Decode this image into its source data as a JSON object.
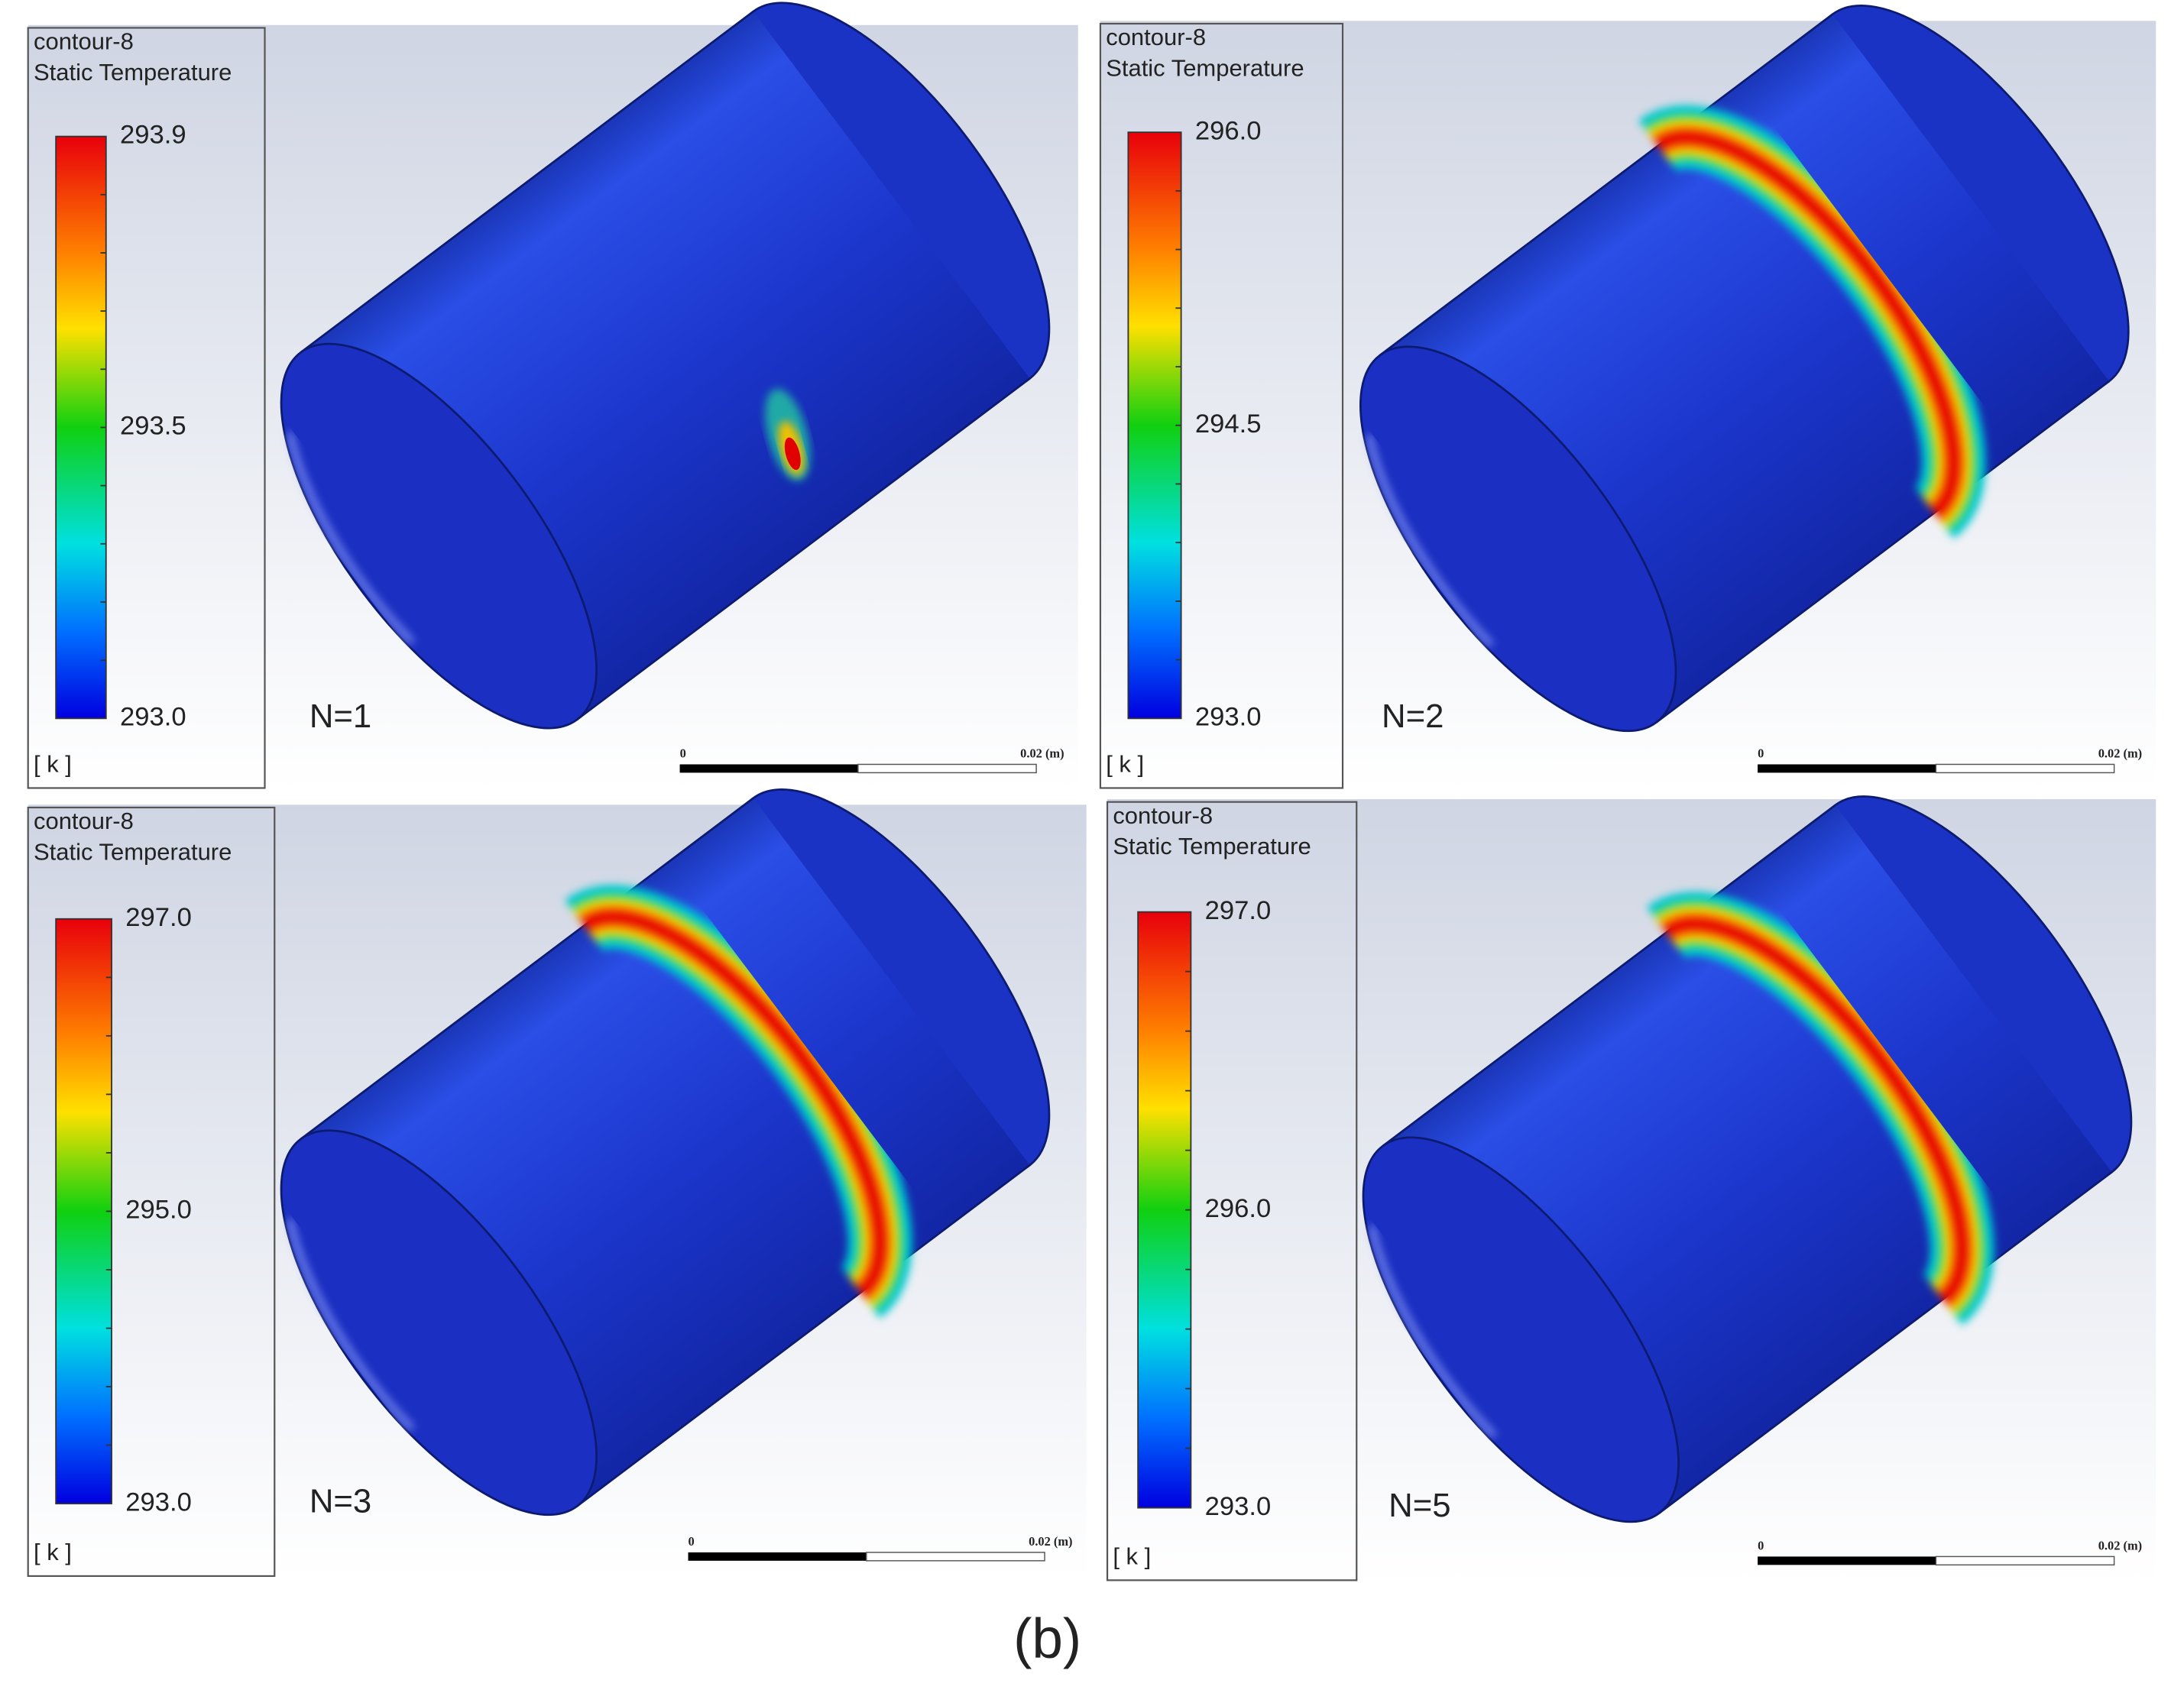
{
  "panels": [
    {
      "legend": {
        "name": "contour-8",
        "variable": "Static Temperature",
        "labels": [
          "293.9",
          "293.5",
          "293.0"
        ],
        "unit": "[ k ]"
      },
      "label": "N=1",
      "scale_bar": {
        "start": "0",
        "end": "0.02 (m)"
      }
    },
    {
      "legend": {
        "name": "contour-8",
        "variable": "Static Temperature",
        "labels": [
          "296.0",
          "294.5",
          "293.0"
        ],
        "unit": "[ k ]"
      },
      "label": "N=2",
      "scale_bar": {
        "start": "0",
        "end": "0.02 (m)"
      }
    },
    {
      "legend": {
        "name": "contour-8",
        "variable": "Static Temperature",
        "labels": [
          "297.0",
          "295.0",
          "293.0"
        ],
        "unit": "[ k ]"
      },
      "label": "N=3",
      "scale_bar": {
        "start": "0",
        "end": "0.02 (m)"
      }
    },
    {
      "legend": {
        "name": "contour-8",
        "variable": "Static Temperature",
        "labels": [
          "297.0",
          "296.0",
          "293.0"
        ],
        "unit": "[ k ]"
      },
      "label": "N=5",
      "scale_bar": {
        "start": "0",
        "end": "0.02 (m)"
      }
    }
  ],
  "caption": "(b)"
}
